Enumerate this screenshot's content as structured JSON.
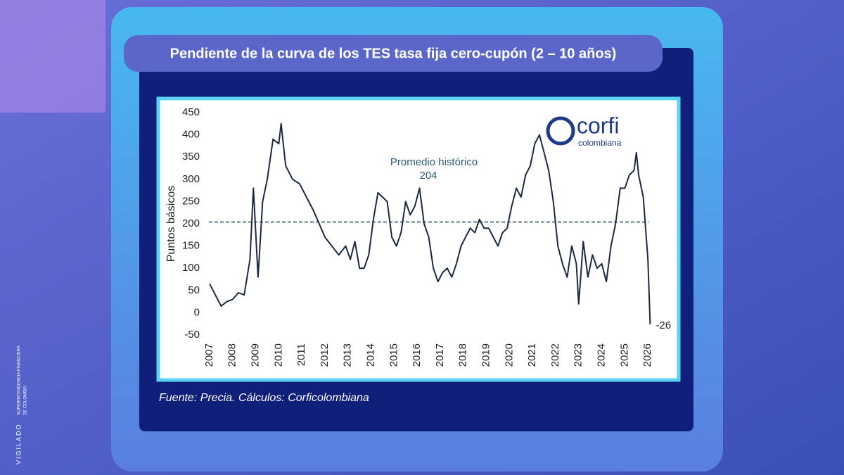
{
  "side_text": [
    "VIGILADO",
    "SUPERINTENDENCIA FINANCIERA",
    "DE COLOMBIA"
  ],
  "logo": {
    "name": "corfi",
    "sub": "colombiana"
  },
  "chart_data": {
    "type": "line",
    "title": "Pendiente de la curva de los TES tasa fija cero-cupón (2 – 10 años)",
    "ylabel": "Puntos básicos",
    "source": "Fuente: Precia. Cálculos: Corficolombiana",
    "average": {
      "label": "Promedio histórico",
      "value": 204
    },
    "xlim": [
      2006.9,
      2026.3
    ],
    "xticks": [
      2007,
      2008,
      2009,
      2010,
      2011,
      2012,
      2013,
      2014,
      2015,
      2016,
      2017,
      2018,
      2019,
      2020,
      2021,
      2022,
      2023,
      2024,
      2025,
      2026
    ],
    "ylim": [
      -50,
      450
    ],
    "yticks": [
      -50,
      0,
      50,
      100,
      150,
      200,
      250,
      300,
      350,
      400,
      450
    ],
    "x": [
      2007.0,
      2007.25,
      2007.5,
      2007.75,
      2008.0,
      2008.25,
      2008.5,
      2008.75,
      2008.9,
      2009.1,
      2009.3,
      2009.5,
      2009.75,
      2010.0,
      2010.1,
      2010.3,
      2010.6,
      2010.9,
      2011.2,
      2011.5,
      2011.75,
      2012.0,
      2012.3,
      2012.6,
      2012.9,
      2013.1,
      2013.3,
      2013.5,
      2013.7,
      2013.9,
      2014.1,
      2014.3,
      2014.5,
      2014.7,
      2014.9,
      2015.1,
      2015.3,
      2015.5,
      2015.7,
      2015.9,
      2016.1,
      2016.3,
      2016.5,
      2016.7,
      2016.9,
      2017.1,
      2017.3,
      2017.5,
      2017.7,
      2017.9,
      2018.1,
      2018.3,
      2018.5,
      2018.7,
      2018.9,
      2019.1,
      2019.3,
      2019.5,
      2019.7,
      2019.9,
      2020.1,
      2020.3,
      2020.5,
      2020.7,
      2020.9,
      2021.1,
      2021.3,
      2021.5,
      2021.7,
      2021.9,
      2022.1,
      2022.3,
      2022.5,
      2022.7,
      2022.9,
      2023.0,
      2023.2,
      2023.4,
      2023.6,
      2023.8,
      2024.0,
      2024.2,
      2024.4,
      2024.6,
      2024.8,
      2025.0,
      2025.2,
      2025.4,
      2025.5,
      2025.6,
      2025.8,
      2026.0,
      2026.1
    ],
    "series": [
      {
        "name": "Pendiente",
        "color": "#1b2a44",
        "values": [
          65,
          40,
          15,
          25,
          30,
          45,
          40,
          120,
          280,
          80,
          250,
          300,
          390,
          380,
          425,
          330,
          300,
          290,
          260,
          230,
          200,
          170,
          150,
          130,
          150,
          120,
          160,
          100,
          100,
          130,
          210,
          270,
          260,
          250,
          170,
          150,
          180,
          250,
          220,
          240,
          280,
          200,
          170,
          100,
          70,
          90,
          100,
          80,
          110,
          150,
          170,
          190,
          180,
          210,
          190,
          190,
          170,
          150,
          180,
          190,
          240,
          280,
          260,
          310,
          330,
          380,
          400,
          360,
          320,
          250,
          150,
          110,
          80,
          150,
          110,
          20,
          160,
          80,
          130,
          100,
          110,
          70,
          150,
          200,
          280,
          280,
          310,
          320,
          360,
          310,
          260,
          120,
          -26
        ]
      }
    ]
  }
}
